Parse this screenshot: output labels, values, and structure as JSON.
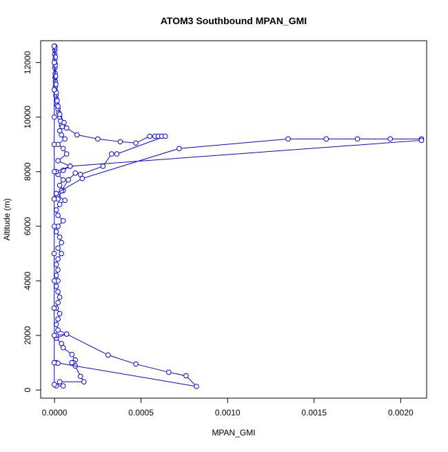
{
  "chart_data": {
    "type": "line",
    "title": "ATOM3 Southbound MPAN_GMI",
    "xlabel": "MPAN_GMI",
    "ylabel": "Altitude (m)",
    "xlim": [
      -8e-05,
      0.00215
    ],
    "ylim": [
      -300,
      12800
    ],
    "x_ticks": [
      0.0,
      0.0005,
      0.001,
      0.0015,
      0.002
    ],
    "x_tick_labels": [
      "0.0000",
      "0.0005",
      "0.0010",
      "0.0015",
      "0.0020"
    ],
    "y_ticks": [
      0,
      2000,
      4000,
      6000,
      8000,
      10000,
      12000
    ],
    "y_tick_labels": [
      "0",
      "2000",
      "4000",
      "6000",
      "8000",
      "10000",
      "12000"
    ],
    "grid": false,
    "legend": "none",
    "marker": "open-circle",
    "color": "#0000ff",
    "series": [
      {
        "points": [
          [
            1e-06,
            12600
          ],
          [
            2e-06,
            12450
          ],
          [
            1e-06,
            12300
          ],
          [
            2e-06,
            12100
          ],
          [
            3e-06,
            11950
          ],
          [
            2e-06,
            11800
          ],
          [
            4e-06,
            11600
          ],
          [
            3e-06,
            11450
          ],
          [
            5e-06,
            11300
          ],
          [
            4e-06,
            11100
          ],
          [
            6e-06,
            10950
          ],
          [
            8e-06,
            10800
          ],
          [
            1.2e-05,
            10650
          ],
          [
            1.5e-05,
            10450
          ],
          [
            2e-05,
            10300
          ],
          [
            2.5e-05,
            10150
          ],
          [
            3e-05,
            10000
          ],
          [
            3.5e-05,
            9850
          ],
          [
            4e-05,
            9700
          ],
          [
            4.5e-05,
            9650
          ],
          [
            3e-05,
            9500
          ],
          [
            4e-05,
            9350
          ],
          [
            6e-05,
            9200
          ],
          [
            2e-05,
            9000
          ],
          [
            5e-05,
            8850
          ],
          [
            7e-05,
            8650
          ],
          [
            2e-05,
            8400
          ],
          [
            9e-05,
            8200
          ],
          [
            5e-05,
            8050
          ],
          [
            2e-05,
            7900
          ],
          [
            5e-05,
            7700
          ],
          [
            3e-05,
            7500
          ],
          [
            5e-05,
            7300
          ],
          [
            2e-05,
            7100
          ],
          [
            6e-05,
            6950
          ],
          [
            3e-05,
            6800
          ],
          [
            1e-05,
            6600
          ],
          [
            2e-05,
            6400
          ],
          [
            5e-05,
            6200
          ],
          [
            2e-05,
            6000
          ],
          [
            1e-05,
            5800
          ],
          [
            3e-05,
            5600
          ],
          [
            4e-05,
            5400
          ],
          [
            2e-05,
            5200
          ],
          [
            4e-05,
            5000
          ],
          [
            2e-05,
            4800
          ],
          [
            1e-05,
            4600
          ],
          [
            2e-05,
            4400
          ],
          [
            1e-05,
            4200
          ],
          [
            2e-05,
            4000
          ],
          [
            1e-05,
            3800
          ],
          [
            2e-05,
            3600
          ],
          [
            3e-05,
            3400
          ],
          [
            2e-05,
            3200
          ],
          [
            1e-05,
            3000
          ],
          [
            3e-05,
            2800
          ],
          [
            2e-05,
            2600
          ],
          [
            1e-05,
            2400
          ],
          [
            2e-05,
            2200
          ],
          [
            7e-05,
            2050
          ],
          [
            1e-05,
            1900
          ],
          [
            4e-05,
            1700
          ],
          [
            5e-05,
            1550
          ],
          [
            0.0001,
            1300
          ],
          [
            0.00012,
            1100
          ],
          [
            0.00011,
            1000
          ],
          [
            0.0001,
            1000
          ],
          [
            0.00012,
            880
          ],
          [
            0.00015,
            500
          ],
          [
            0.00017,
            300
          ],
          [
            3e-05,
            300
          ],
          [
            1e-05,
            150
          ],
          [
            5e-05,
            150
          ]
        ]
      },
      {
        "points": [
          [
            3e-06,
            12550
          ],
          [
            5e-06,
            12200
          ],
          [
            4e-06,
            11900
          ],
          [
            6e-06,
            11500
          ],
          [
            8e-06,
            11200
          ],
          [
            1e-05,
            10900
          ],
          [
            1.5e-05,
            10600
          ],
          [
            2e-05,
            10400
          ],
          [
            3e-05,
            10100
          ],
          [
            5.5e-05,
            9800
          ],
          [
            7e-05,
            9600
          ],
          [
            0.00013,
            9350
          ],
          [
            0.00025,
            9200
          ],
          [
            0.00038,
            9100
          ],
          [
            0.00047,
            9050
          ],
          [
            0.00055,
            9300
          ],
          [
            0.00058,
            9300
          ],
          [
            0.0006,
            9300
          ],
          [
            0.00062,
            9300
          ],
          [
            0.00064,
            9300
          ],
          [
            0.00036,
            8650
          ],
          [
            0.00033,
            8650
          ],
          [
            0.00028,
            8200
          ],
          [
            0.00015,
            7900
          ],
          [
            0.00012,
            7950
          ],
          [
            8e-05,
            7700
          ],
          [
            4e-05,
            7300
          ],
          [
            2e-05,
            7000
          ]
        ]
      },
      {
        "points": [
          [
            1e-05,
            7200
          ],
          [
            0.00016,
            7750
          ],
          [
            0.00072,
            8850
          ],
          [
            0.00135,
            9200
          ],
          [
            0.00157,
            9200
          ],
          [
            0.00175,
            9200
          ],
          [
            0.00194,
            9200
          ],
          [
            0.00212,
            9200
          ],
          [
            0.00212,
            9150
          ],
          [
            9e-05,
            8200
          ],
          [
            1e-05,
            8000
          ]
        ]
      },
      {
        "points": [
          [
            1e-05,
            2000
          ],
          [
            7e-05,
            2050
          ],
          [
            0.00031,
            1280
          ],
          [
            0.00047,
            950
          ],
          [
            0.00066,
            650
          ],
          [
            0.00076,
            520
          ],
          [
            0.00082,
            130
          ],
          [
            1e-05,
            1000
          ],
          [
            2e-05,
            980
          ]
        ]
      },
      {
        "points": [
          [
            -2e-06,
            12600
          ],
          [
            -1e-06,
            12000
          ],
          [
            -2e-06,
            11000
          ],
          [
            -1e-06,
            10000
          ],
          [
            -2e-06,
            9000
          ],
          [
            -1e-06,
            8000
          ],
          [
            -2e-06,
            7000
          ],
          [
            -1e-06,
            6000
          ],
          [
            -2e-06,
            5000
          ],
          [
            -1e-06,
            4000
          ],
          [
            -2e-06,
            3000
          ],
          [
            -1e-06,
            2000
          ],
          [
            -2e-06,
            1000
          ],
          [
            -1e-06,
            200
          ]
        ]
      }
    ]
  }
}
